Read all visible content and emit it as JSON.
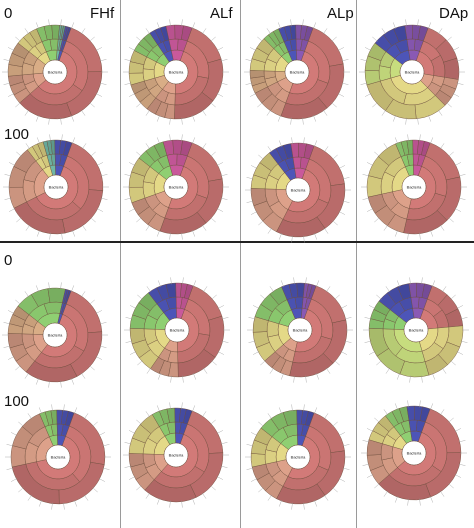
{
  "columns": [
    "FHf",
    "ALf",
    "ALp",
    "DAp"
  ],
  "row_labels": [
    "0",
    "100"
  ],
  "center_label": "Bacteria",
  "palette": {
    "red": "#d27a78",
    "salmon": "#dda18a",
    "tan": "#d9ad86",
    "yellow": "#e4d987",
    "lime": "#c7dd7e",
    "green": "#8fcf72",
    "teal": "#6fb7a5",
    "blue": "#4d55b8",
    "purple": "#8a59b4",
    "magenta": "#c9599b",
    "pink": "#e3a2c1"
  },
  "charts": [
    {
      "id": "top-0-FHf",
      "mix": {
        "red": 58,
        "salmon": 10,
        "tan": 12,
        "yellow": 8,
        "green": 8,
        "teal": 2,
        "blue": 2
      }
    },
    {
      "id": "top-0-ALf",
      "mix": {
        "red": 45,
        "salmon": 10,
        "tan": 10,
        "yellow": 12,
        "green": 8,
        "blue": 6,
        "magenta": 9
      }
    },
    {
      "id": "top-0-ALp",
      "mix": {
        "red": 50,
        "salmon": 12,
        "tan": 8,
        "yellow": 12,
        "green": 6,
        "blue": 6,
        "purple": 6
      }
    },
    {
      "id": "top-0-DAp",
      "mix": {
        "red": 22,
        "salmon": 10,
        "yellow": 33,
        "lime": 15,
        "blue": 12,
        "purple": 8
      }
    },
    {
      "id": "top-100-FHf",
      "mix": {
        "red": 62,
        "salmon": 22,
        "yellow": 6,
        "teal": 4,
        "blue": 6
      }
    },
    {
      "id": "top-100-ALf",
      "mix": {
        "red": 50,
        "salmon": 14,
        "yellow": 16,
        "green": 10,
        "magenta": 10
      }
    },
    {
      "id": "top-100-ALp",
      "mix": {
        "red": 52,
        "salmon": 18,
        "yellow": 14,
        "blue": 8,
        "magenta": 8
      }
    },
    {
      "id": "top-100-DAp",
      "mix": {
        "red": 48,
        "salmon": 18,
        "yellow": 22,
        "green": 6,
        "magenta": 6
      }
    },
    {
      "id": "bot-0-FHf",
      "mix": {
        "red": 55,
        "salmon": 15,
        "tan": 10,
        "green": 18,
        "blue": 2
      }
    },
    {
      "id": "bot-0-ALf",
      "mix": {
        "red": 44,
        "salmon": 10,
        "yellow": 16,
        "green": 14,
        "blue": 10,
        "magenta": 6
      }
    },
    {
      "id": "bot-0-ALp",
      "mix": {
        "red": 48,
        "salmon": 10,
        "yellow": 16,
        "green": 14,
        "blue": 8,
        "purple": 4
      }
    },
    {
      "id": "bot-0-DAp",
      "mix": {
        "red": 18,
        "yellow": 22,
        "lime": 30,
        "green": 10,
        "blue": 12,
        "purple": 8
      }
    },
    {
      "id": "bot-100-FHf",
      "mix": {
        "red": 66,
        "salmon": 22,
        "green": 6,
        "blue": 6
      }
    },
    {
      "id": "bot-100-ALf",
      "mix": {
        "red": 56,
        "salmon": 14,
        "yellow": 16,
        "green": 8,
        "blue": 6
      }
    },
    {
      "id": "bot-100-ALp",
      "mix": {
        "red": 52,
        "salmon": 14,
        "yellow": 14,
        "green": 14,
        "blue": 6
      }
    },
    {
      "id": "bot-100-DAp",
      "mix": {
        "red": 58,
        "salmon": 16,
        "yellow": 10,
        "green": 8,
        "blue": 8
      }
    }
  ]
}
